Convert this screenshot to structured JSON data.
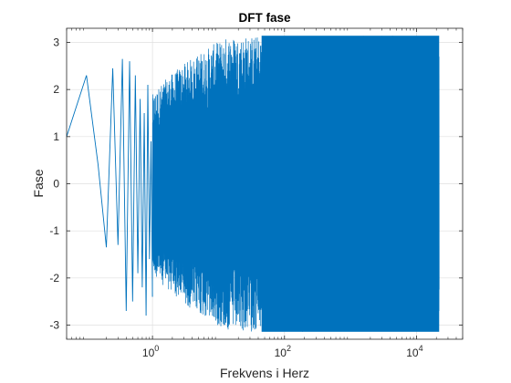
{
  "chart_data": {
    "type": "line",
    "title": "DFT fase",
    "xlabel": "Frekvens i Herz",
    "ylabel": "Fase",
    "x_scale": "log",
    "xlim": [
      0.05,
      50000
    ],
    "ylim": [
      -3.3,
      3.3
    ],
    "grid": true,
    "legend": "none",
    "line_color": "#0072BD",
    "x_ticks": [
      {
        "value": 1,
        "base": "10",
        "exp": "0"
      },
      {
        "value": 100,
        "base": "10",
        "exp": "2"
      },
      {
        "value": 10000,
        "base": "10",
        "exp": "4"
      }
    ],
    "y_ticks": [
      {
        "value": 3,
        "label": "3"
      },
      {
        "value": 2,
        "label": "2"
      },
      {
        "value": 1,
        "label": "1"
      },
      {
        "value": 0,
        "label": "0"
      },
      {
        "value": -1,
        "label": "-1"
      },
      {
        "value": -2,
        "label": "-2"
      },
      {
        "value": -3,
        "label": "-3"
      }
    ],
    "x": [
      0.05,
      0.1,
      0.15,
      0.2,
      0.25,
      0.3,
      0.35,
      0.4,
      0.45,
      0.5,
      0.55,
      0.6,
      0.65,
      0.7,
      0.75,
      0.8,
      0.85,
      0.9,
      0.95,
      1.0
    ],
    "y": [
      1.0,
      2.3,
      0.4,
      -1.35,
      2.45,
      -1.3,
      2.65,
      -2.7,
      2.6,
      -2.5,
      2.3,
      -1.9,
      1.8,
      -2.2,
      1.5,
      -2.8,
      2.1,
      -1.6,
      0.9,
      -2.4
    ],
    "dense_region": {
      "x_start": 1.0,
      "x_end": 22050,
      "y_min": -3.14159,
      "y_max": 3.14159
    }
  }
}
